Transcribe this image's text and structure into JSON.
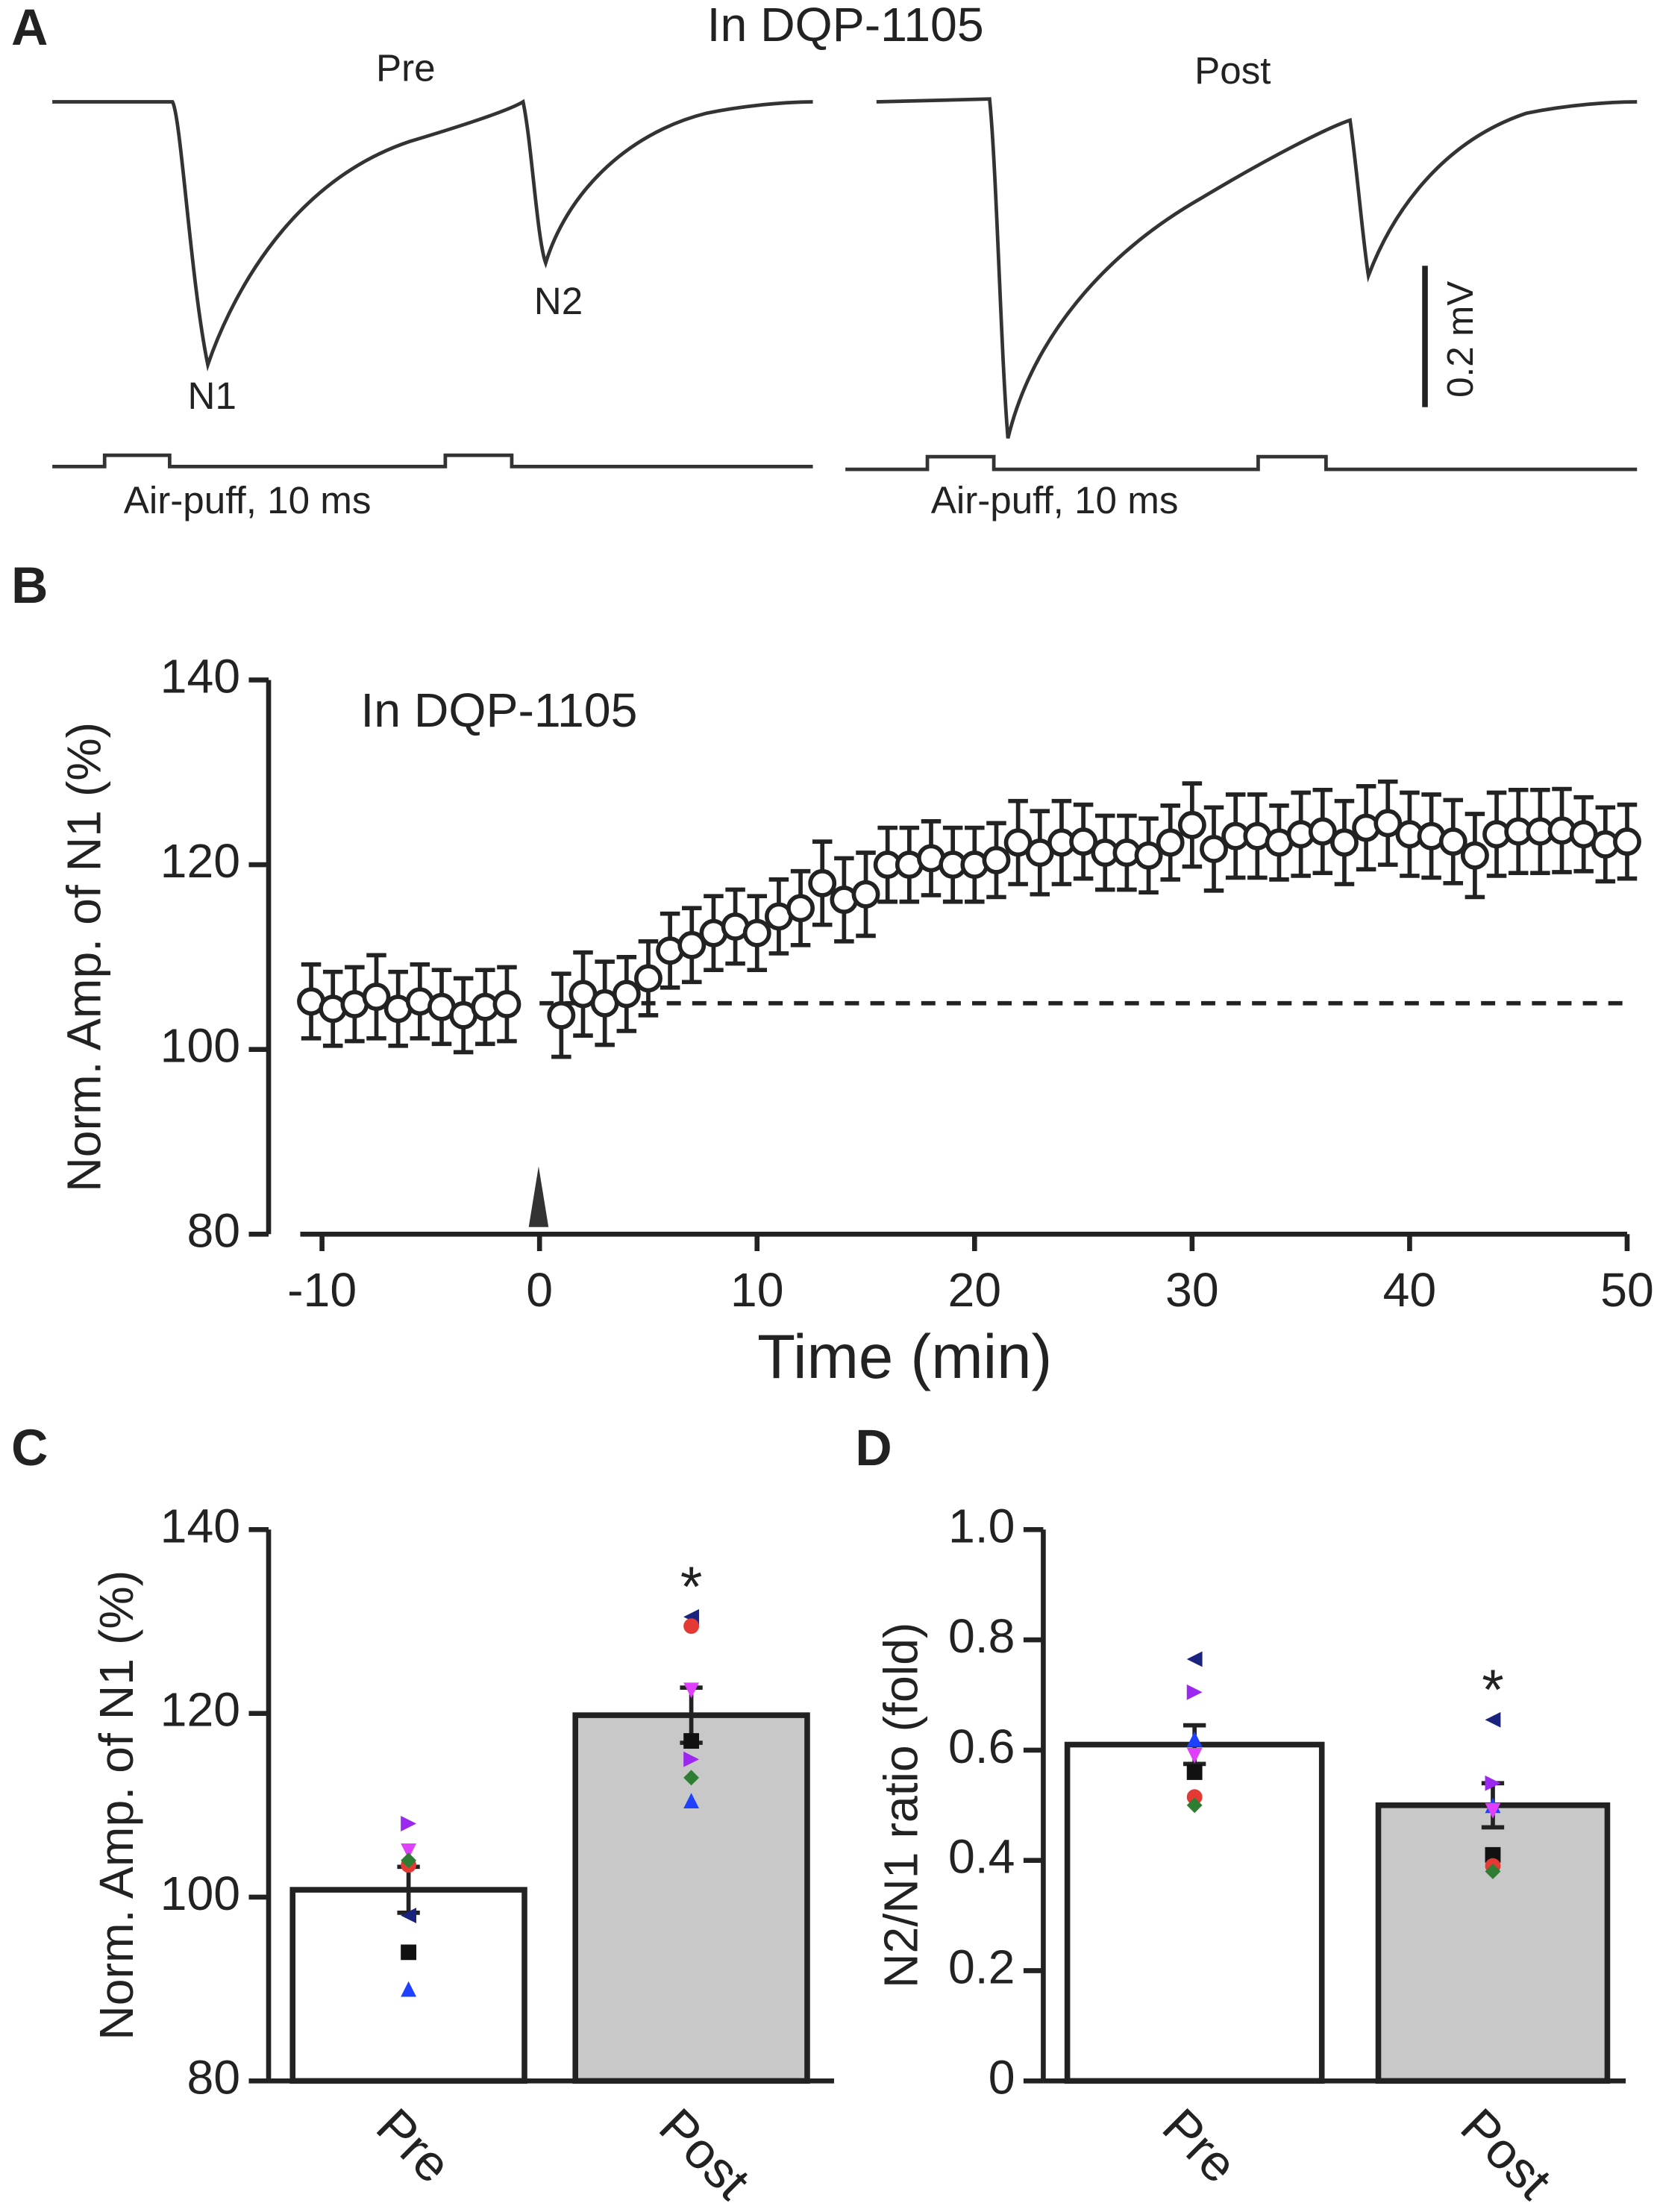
{
  "panel_labels": [
    "A",
    "B",
    "C",
    "D"
  ],
  "traces": {
    "title": "In DQP-1105",
    "pre": "Pre",
    "post": "Post",
    "n1": "N1",
    "n2": "N2",
    "scale_bar": "0.2 mV",
    "stimulus_pre": "Air-puff, 10 ms",
    "stimulus_post": "Air-puff, 10 ms"
  },
  "chart_data": [
    {
      "type": "scatter",
      "annotation": "In DQP-1105",
      "xlabel": "Time (min)",
      "ylabel": "Norm. Amp. of N1 (%)",
      "xlim": [
        -11,
        50
      ],
      "xticks": [
        -10,
        0,
        10,
        20,
        30,
        40,
        50
      ],
      "ylim": [
        80,
        140
      ],
      "yticks": [
        80,
        100,
        120,
        140
      ],
      "reference_line": 105,
      "color": "#ffffff",
      "x": [
        -10.5,
        -9.5,
        -8.5,
        -7.5,
        -6.5,
        -5.5,
        -4.5,
        -3.5,
        -2.5,
        -1.5,
        1,
        2,
        3,
        4,
        5,
        6,
        7,
        8,
        9,
        10,
        11,
        12,
        13,
        14,
        15,
        16,
        17,
        18,
        19,
        20,
        21,
        22,
        23,
        24,
        25,
        26,
        27,
        28,
        29,
        30,
        31,
        32,
        33,
        34,
        35,
        36,
        37,
        38,
        39,
        40,
        41,
        42,
        43,
        44,
        45,
        46,
        47,
        48,
        49,
        50
      ],
      "values": [
        105.2,
        104.4,
        104.9,
        105.7,
        104.4,
        105.2,
        104.6,
        103.7,
        104.6,
        104.9,
        103.7,
        106,
        105,
        106,
        107.7,
        110.7,
        111.3,
        112.6,
        113.3,
        112.6,
        114.4,
        115.3,
        118,
        116.2,
        116.8,
        120,
        120,
        120.7,
        120,
        120,
        120.5,
        122.4,
        121.3,
        122.4,
        122.5,
        121.3,
        121.3,
        121,
        122.4,
        124.3,
        121.7,
        123.1,
        123.1,
        122.4,
        123.3,
        123.6,
        122.4,
        124,
        124.5,
        123.3,
        123.1,
        122.5,
        121,
        123.3,
        123.6,
        123.6,
        123.7,
        123.3,
        122.2,
        122.5
      ],
      "errors": [
        4,
        4,
        4,
        4.5,
        4,
        4,
        4,
        4,
        4,
        4,
        4.5,
        4.5,
        4.5,
        4,
        4,
        4,
        4,
        4,
        4,
        4,
        4,
        4,
        4.5,
        4.5,
        4.5,
        4,
        4,
        4,
        4,
        4,
        4,
        4.5,
        4.5,
        4.5,
        4,
        4,
        4,
        4,
        4,
        4.5,
        4.5,
        4.5,
        4.5,
        4,
        4.5,
        4.5,
        4.5,
        4.5,
        4.5,
        4.5,
        4.5,
        4.5,
        4.5,
        4.5,
        4.5,
        4.5,
        4.5,
        4,
        4,
        4
      ]
    },
    {
      "type": "bar",
      "ylabel": "Norm. Amp. of N1 (%)",
      "categories": [
        "Pre",
        "Post"
      ],
      "values": [
        100.8,
        119.8
      ],
      "errors": [
        2.5,
        3
      ],
      "colors": [
        "#ffffff",
        "#c8c8c8"
      ],
      "ylim": [
        80,
        140
      ],
      "yticks": [
        80,
        100,
        120,
        140
      ],
      "annotation": "*",
      "dots": [
        {
          "color": "#1a237e",
          "marker": "triangle-left",
          "values": [
            98,
            130.5
          ]
        },
        {
          "color": "#e53935",
          "marker": "circle",
          "values": [
            103.5,
            129.5
          ]
        },
        {
          "color": "#e040fb",
          "marker": "triangle-down",
          "values": [
            105,
            122.5
          ]
        },
        {
          "color": "#111111",
          "marker": "square",
          "values": [
            94,
            117
          ]
        },
        {
          "color": "#9c27f0",
          "marker": "triangle-right",
          "values": [
            108,
            115
          ]
        },
        {
          "color": "#2e7d32",
          "marker": "diamond",
          "values": [
            104,
            113
          ]
        },
        {
          "color": "#1e40ff",
          "marker": "triangle-up",
          "values": [
            90,
            110.5
          ]
        }
      ]
    },
    {
      "type": "bar",
      "ylabel": "N2/N1 ratio (fold)",
      "categories": [
        "Pre",
        "Post"
      ],
      "values": [
        0.61,
        0.5
      ],
      "errors": [
        0.035,
        0.04
      ],
      "colors": [
        "#ffffff",
        "#c8c8c8"
      ],
      "ylim": [
        0,
        1
      ],
      "yticks": [
        0,
        0.2,
        0.4,
        0.6,
        0.8,
        {
          "value": 1,
          "label": "1.0"
        }
      ],
      "annotation": "*",
      "dots": [
        {
          "color": "#1a237e",
          "marker": "triangle-left",
          "values": [
            0.765,
            0.655
          ]
        },
        {
          "color": "#9c27f0",
          "marker": "triangle-right",
          "values": [
            0.705,
            0.54
          ]
        },
        {
          "color": "#1e40ff",
          "marker": "triangle-up",
          "values": [
            0.62,
            0.5
          ]
        },
        {
          "color": "#e040fb",
          "marker": "triangle-down",
          "values": [
            0.59,
            0.49
          ]
        },
        {
          "color": "#111111",
          "marker": "square",
          "values": [
            0.56,
            0.41
          ]
        },
        {
          "color": "#e53935",
          "marker": "circle",
          "values": [
            0.515,
            0.39
          ]
        },
        {
          "color": "#2e7d32",
          "marker": "diamond",
          "values": [
            0.5,
            0.38
          ]
        }
      ]
    }
  ]
}
